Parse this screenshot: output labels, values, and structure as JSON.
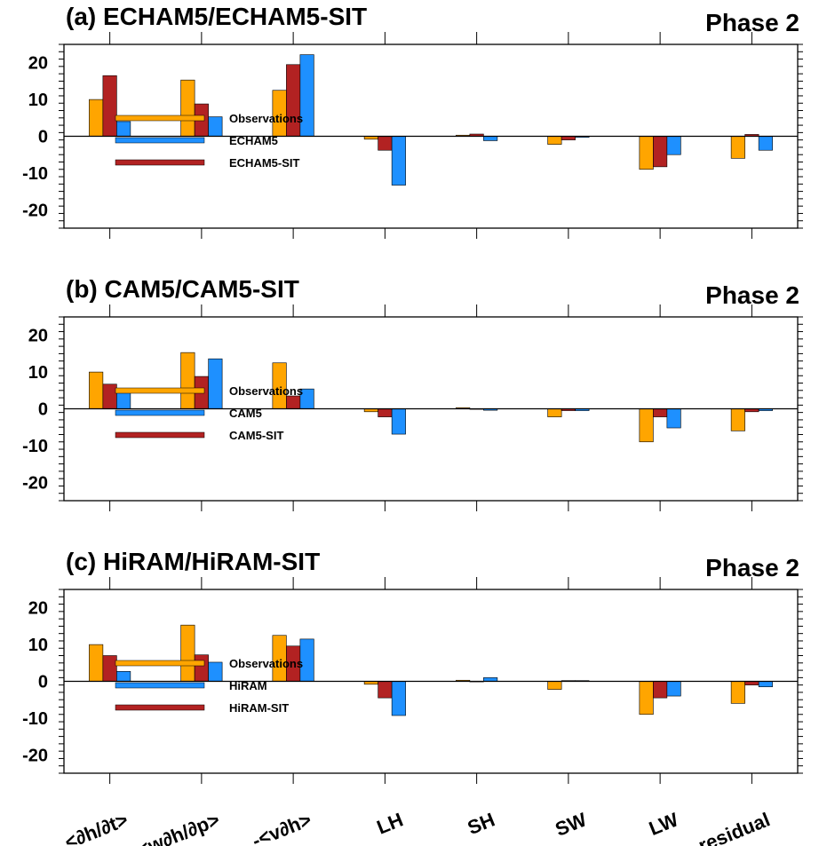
{
  "colors": {
    "observations": "#FFA500",
    "model": "#1E90FF",
    "model_sit": "#B22222",
    "axis": "#000000"
  },
  "chart_data": [
    {
      "type": "bar",
      "title": "(a) ECHAM5/ECHAM5-SIT",
      "phase": "Phase 2",
      "categories": [
        "<∂h/∂t>",
        "-<w∂h/∂p>",
        "-<v∂h>",
        "LH",
        "SH",
        "SW",
        "LW",
        "residual"
      ],
      "ylim": [
        -25,
        25
      ],
      "yticks": [
        -20,
        -10,
        0,
        10,
        20
      ],
      "ytick_labels": [
        "-20",
        "-10",
        "0",
        "10",
        "20"
      ],
      "series": [
        {
          "name": "Observations",
          "color_key": "observations",
          "values": [
            10.0,
            15.3,
            12.5,
            -0.8,
            0.3,
            -2.2,
            -9.0,
            -6.0
          ]
        },
        {
          "name": "ECHAM5-SIT",
          "color_key": "model_sit",
          "values": [
            16.5,
            8.8,
            19.5,
            -3.8,
            0.6,
            -1.0,
            -8.3,
            0.5
          ]
        },
        {
          "name": "ECHAM5",
          "color_key": "model",
          "values": [
            4.0,
            5.3,
            22.2,
            -13.3,
            -1.2,
            -0.3,
            -5.0,
            -3.8
          ]
        }
      ],
      "legend": [
        "Observations",
        "ECHAM5",
        "ECHAM5-SIT"
      ]
    },
    {
      "type": "bar",
      "title": "(b) CAM5/CAM5-SIT",
      "phase": "Phase 2",
      "categories": [
        "<∂h/∂t>",
        "-<w∂h/∂p>",
        "-<v∂h>",
        "LH",
        "SH",
        "SW",
        "LW",
        "residual"
      ],
      "ylim": [
        -25,
        25
      ],
      "yticks": [
        -20,
        -10,
        0,
        10,
        20
      ],
      "ytick_labels": [
        "-20",
        "-10",
        "0",
        "10",
        "20"
      ],
      "series": [
        {
          "name": "Observations",
          "color_key": "observations",
          "values": [
            10.0,
            15.3,
            12.5,
            -0.8,
            0.3,
            -2.2,
            -9.0,
            -6.0
          ]
        },
        {
          "name": "CAM5-SIT",
          "color_key": "model_sit",
          "values": [
            6.7,
            8.8,
            3.5,
            -2.2,
            0.0,
            -0.5,
            -2.2,
            -0.8
          ]
        },
        {
          "name": "CAM5",
          "color_key": "model",
          "values": [
            5.2,
            13.6,
            5.4,
            -6.9,
            -0.4,
            -0.5,
            -5.2,
            -0.5
          ]
        }
      ],
      "legend": [
        "Observations",
        "CAM5",
        "CAM5-SIT"
      ]
    },
    {
      "type": "bar",
      "title": "(c) HiRAM/HiRAM-SIT",
      "phase": "Phase 2",
      "categories": [
        "<∂h/∂t>",
        "-<w∂h/∂p>",
        "-<v∂h>",
        "LH",
        "SH",
        "SW",
        "LW",
        "residual"
      ],
      "ylim": [
        -25,
        25
      ],
      "yticks": [
        -20,
        -10,
        0,
        10,
        20
      ],
      "ytick_labels": [
        "-20",
        "-10",
        "0",
        "10",
        "20"
      ],
      "series": [
        {
          "name": "Observations",
          "color_key": "observations",
          "values": [
            10.0,
            15.3,
            12.5,
            -0.8,
            0.3,
            -2.2,
            -9.0,
            -6.0
          ]
        },
        {
          "name": "HiRAM-SIT",
          "color_key": "model_sit",
          "values": [
            7.0,
            7.2,
            9.6,
            -4.5,
            0.0,
            0.2,
            -4.5,
            -1.0
          ]
        },
        {
          "name": "HiRAM",
          "color_key": "model",
          "values": [
            2.7,
            5.2,
            11.5,
            -9.3,
            1.0,
            0.2,
            -4.0,
            -1.5
          ]
        }
      ],
      "legend": [
        "Observations",
        "HiRAM",
        "HiRAM-SIT"
      ]
    }
  ]
}
